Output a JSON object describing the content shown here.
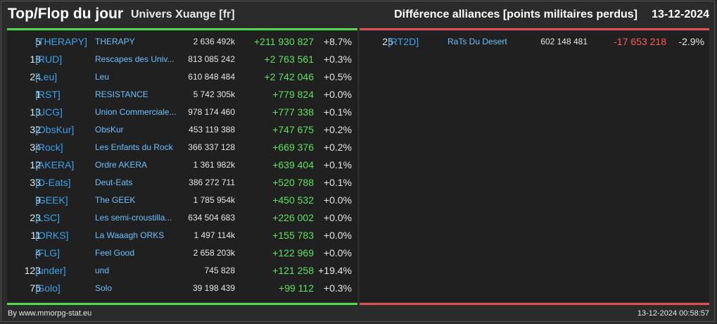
{
  "header": {
    "title": "Top/Flop du jour",
    "universe": "Univers Xuange [fr]",
    "right_title": "Différence alliances [points militaires perdus]",
    "date": "13-12-2024"
  },
  "colors": {
    "gain": "#5fe35f",
    "loss": "#ff5a5a",
    "tag": "#3aa3e8",
    "name": "#6cc0ff"
  },
  "top": [
    {
      "rank": "5",
      "tag": "[THERAPY]",
      "name": "THERAPY",
      "points": "2 636 492k",
      "diff": "+211 930 827",
      "pct": "+8.7%"
    },
    {
      "rank": "18",
      "tag": "[RUD]",
      "name": "Rescapes des Univ...",
      "points": "813 085 242",
      "diff": "+2 763 561",
      "pct": "+0.3%"
    },
    {
      "rank": "24",
      "tag": "[Leu]",
      "name": "Leu",
      "points": "610 848 484",
      "diff": "+2 742 046",
      "pct": "+0.5%"
    },
    {
      "rank": "1",
      "tag": "[RST]",
      "name": "RESISTANCE",
      "points": "5 742 305k",
      "diff": "+779 824",
      "pct": "+0.0%"
    },
    {
      "rank": "13",
      "tag": "[UCG]",
      "name": "Union Commerciale...",
      "points": "978 174 460",
      "diff": "+777 338",
      "pct": "+0.1%"
    },
    {
      "rank": "32",
      "tag": "[ObsKur]",
      "name": "ObsKur",
      "points": "453 119 388",
      "diff": "+747 675",
      "pct": "+0.2%"
    },
    {
      "rank": "34",
      "tag": "[Rock]",
      "name": "Les Enfants du Rock",
      "points": "366 337 128",
      "diff": "+669 376",
      "pct": "+0.2%"
    },
    {
      "rank": "12",
      "tag": "[AKERA]",
      "name": "Ordre AKERA",
      "points": "1 361 982k",
      "diff": "+639 404",
      "pct": "+0.1%"
    },
    {
      "rank": "33",
      "tag": "[D-Eats]",
      "name": "Deut-Eats",
      "points": "386 272 711",
      "diff": "+520 788",
      "pct": "+0.1%"
    },
    {
      "rank": "9",
      "tag": "[GEEK]",
      "name": "The GEEK",
      "points": "1 785 954k",
      "diff": "+450 532",
      "pct": "+0.0%"
    },
    {
      "rank": "23",
      "tag": "[LSC]",
      "name": "Les semi-croustilla...",
      "points": "634 504 683",
      "diff": "+226 002",
      "pct": "+0.0%"
    },
    {
      "rank": "11",
      "tag": "[ORKS]",
      "name": "La Waaagh ORKS",
      "points": "1 497 114k",
      "diff": "+155 783",
      "pct": "+0.0%"
    },
    {
      "rank": "4",
      "tag": "[FLG]",
      "name": "Feel Good",
      "points": "2 658 203k",
      "diff": "+122 969",
      "pct": "+0.0%"
    },
    {
      "rank": "123",
      "tag": "[under]",
      "name": "und",
      "points": "745 828",
      "diff": "+121 258",
      "pct": "+19.4%"
    },
    {
      "rank": "76",
      "tag": "[Solo]",
      "name": "Solo",
      "points": "39 198 439",
      "diff": "+99 112",
      "pct": "+0.3%"
    }
  ],
  "flop": [
    {
      "rank": "25",
      "tag": "[RT2D]",
      "name": "RaTs Du Desert",
      "points": "602 148 481",
      "diff": "-17 653 218",
      "pct": "-2.9%"
    }
  ],
  "footer": {
    "credit": "By www.mmorpg-stat.eu",
    "timestamp": "13-12-2024 00:58:57"
  }
}
